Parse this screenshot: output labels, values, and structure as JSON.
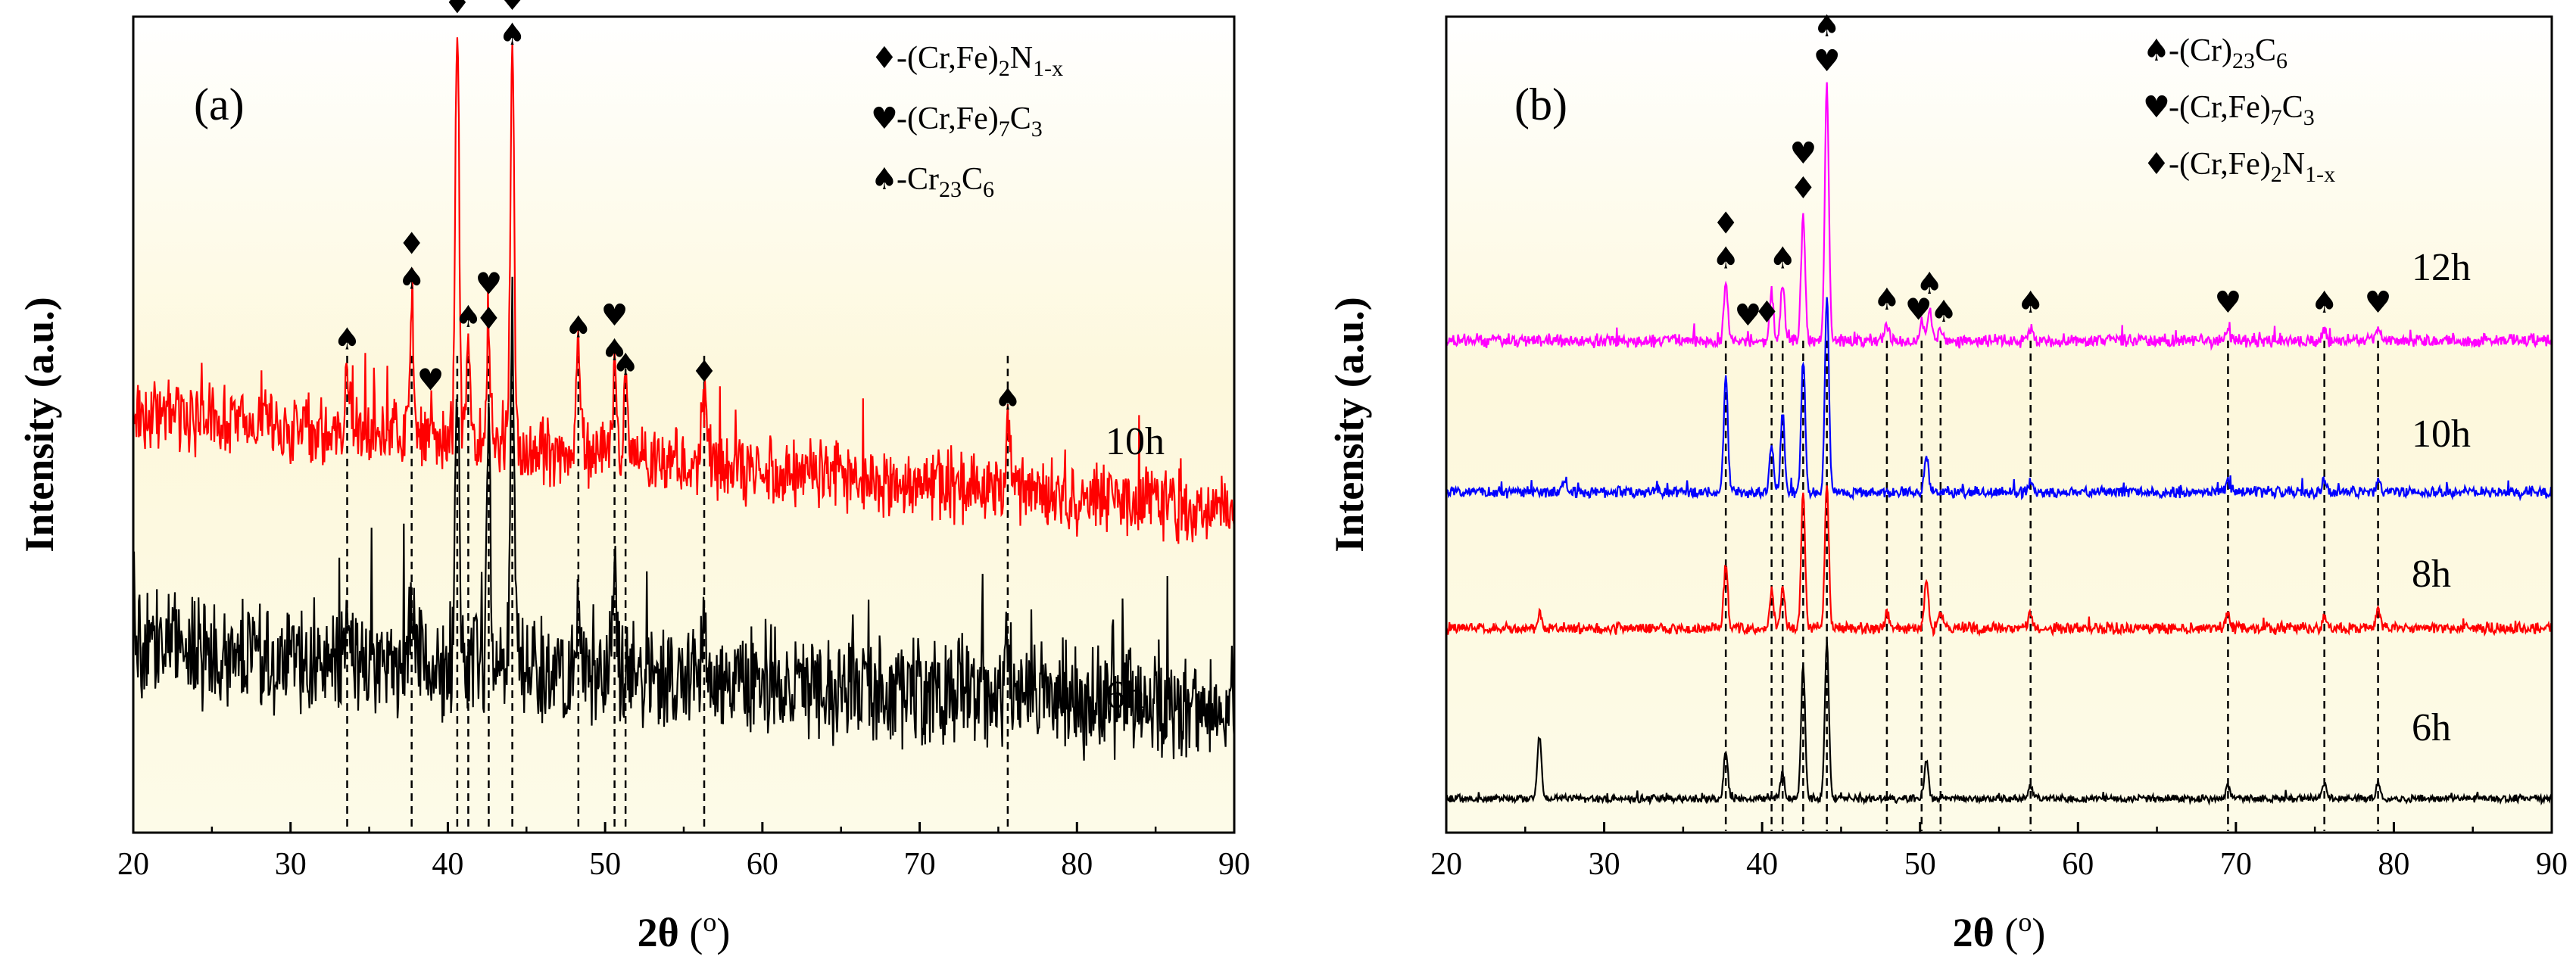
{
  "chart_data": [
    {
      "type": "line",
      "panel_label": "(a)",
      "xlabel_main": "2θ",
      "xlabel_unit": "(",
      "xlabel_deg": "o",
      "xlabel_close": ")",
      "ylabel": "Intensity (a.u.)",
      "xlim": [
        20,
        90
      ],
      "xticks": [
        "20",
        "30",
        "40",
        "50",
        "60",
        "70",
        "80",
        "90"
      ],
      "background": "yellow-gradient",
      "legend": [
        {
          "symbol": "♦",
          "prefix": "-(Cr,Fe)",
          "sub1": "2",
          "mid": "N",
          "sub2": "1-x"
        },
        {
          "symbol": "♥",
          "prefix": "-(Cr,Fe)",
          "sub1": "7",
          "mid": "C",
          "sub2": "3"
        },
        {
          "symbol": "♠",
          "prefix": "-Cr",
          "sub1": "23",
          "mid": "C",
          "sub2": "6"
        }
      ],
      "series": [
        {
          "name": "10h",
          "color": "#ff0000",
          "baseline_start": 0.2,
          "baseline_end": 0.05,
          "noise": 0.09,
          "peaks": [
            [
              33.6,
              0.1
            ],
            [
              37.7,
              0.2
            ],
            [
              38.9,
              0.05
            ],
            [
              40.6,
              0.62
            ],
            [
              41.3,
              0.15
            ],
            [
              42.6,
              0.15
            ],
            [
              44.1,
              0.58
            ],
            [
              48.3,
              0.15
            ],
            [
              50.6,
              0.12
            ],
            [
              51.3,
              0.1
            ],
            [
              56.3,
              0.1
            ],
            [
              75.6,
              0.1
            ]
          ]
        },
        {
          "name": "6h",
          "color": "#000000",
          "baseline_start": 0.12,
          "baseline_end": 0.03,
          "noise": 0.14,
          "peaks": [
            [
              33.6,
              0.05
            ],
            [
              37.7,
              0.1
            ],
            [
              40.6,
              0.45
            ],
            [
              42.6,
              0.35
            ],
            [
              44.1,
              0.5
            ],
            [
              48.3,
              0.08
            ],
            [
              50.6,
              0.15
            ],
            [
              56.3,
              0.08
            ],
            [
              75.6,
              0.1
            ]
          ]
        }
      ],
      "reference_lines": [
        33.6,
        37.7,
        40.6,
        41.3,
        42.6,
        44.1,
        48.3,
        50.6,
        51.3,
        56.3,
        75.6
      ],
      "annotations": [
        {
          "x": 33.6,
          "symbols": "♠"
        },
        {
          "x": 37.7,
          "symbols": "♦♠"
        },
        {
          "x": 38.9,
          "symbols": "♥"
        },
        {
          "x": 40.6,
          "symbols": "♦"
        },
        {
          "x": 41.3,
          "symbols": "♠"
        },
        {
          "x": 42.6,
          "symbols": "♥♦"
        },
        {
          "x": 44.1,
          "symbols": "♥♠"
        },
        {
          "x": 48.3,
          "symbols": "♠"
        },
        {
          "x": 50.6,
          "symbols": "♥♠"
        },
        {
          "x": 51.3,
          "symbols": "♠"
        },
        {
          "x": 56.3,
          "symbols": "♦"
        },
        {
          "x": 75.6,
          "symbols": "♠"
        }
      ]
    },
    {
      "type": "line",
      "panel_label": "(b)",
      "xlabel_main": "2θ",
      "xlabel_unit": "(",
      "xlabel_deg": "o",
      "xlabel_close": ")",
      "ylabel": "Intensity (a.u.)",
      "xlim": [
        20,
        90
      ],
      "xticks": [
        "20",
        "30",
        "40",
        "50",
        "60",
        "70",
        "80",
        "90"
      ],
      "background": "yellow-gradient",
      "legend": [
        {
          "symbol": "♠",
          "prefix": "-(Cr)",
          "sub1": "23",
          "mid": "C",
          "sub2": "6"
        },
        {
          "symbol": "♥",
          "prefix": "-(Cr,Fe)",
          "sub1": "7",
          "mid": "C",
          "sub2": "3"
        },
        {
          "symbol": "♦",
          "prefix": "-(Cr,Fe)",
          "sub1": "2",
          "mid": "N",
          "sub2": "1-x"
        }
      ],
      "series": [
        {
          "name": "12h",
          "color": "#ff00ff",
          "baseline_start": 0.0,
          "baseline_end": 0.0,
          "noise": 0.035,
          "peaks": [
            [
              37.7,
              0.18
            ],
            [
              40.6,
              0.15
            ],
            [
              41.3,
              0.18
            ],
            [
              42.6,
              0.4
            ],
            [
              44.1,
              0.8
            ],
            [
              47.9,
              0.05
            ],
            [
              50.1,
              0.06
            ],
            [
              50.6,
              0.1
            ],
            [
              51.3,
              0.04
            ],
            [
              57.0,
              0.04
            ],
            [
              69.5,
              0.04
            ],
            [
              75.6,
              0.04
            ],
            [
              79.0,
              0.04
            ]
          ]
        },
        {
          "name": "10h",
          "color": "#0000ff",
          "baseline_start": 0.0,
          "baseline_end": 0.0,
          "noise": 0.03,
          "peaks": [
            [
              27.5,
              0.04
            ],
            [
              37.7,
              0.38
            ],
            [
              40.6,
              0.15
            ],
            [
              41.3,
              0.25
            ],
            [
              42.6,
              0.42
            ],
            [
              44.1,
              0.62
            ],
            [
              50.4,
              0.12
            ],
            [
              57.0,
              0.04
            ],
            [
              69.5,
              0.04
            ],
            [
              75.6,
              0.04
            ],
            [
              79.0,
              0.04
            ]
          ]
        },
        {
          "name": "8h",
          "color": "#ff0000",
          "baseline_start": 0.0,
          "baseline_end": 0.0,
          "noise": 0.03,
          "peaks": [
            [
              25.9,
              0.05
            ],
            [
              37.7,
              0.2
            ],
            [
              40.6,
              0.12
            ],
            [
              41.3,
              0.12
            ],
            [
              42.6,
              0.42
            ],
            [
              44.1,
              0.45
            ],
            [
              47.9,
              0.05
            ],
            [
              50.4,
              0.15
            ],
            [
              51.3,
              0.05
            ],
            [
              57.0,
              0.04
            ],
            [
              69.5,
              0.05
            ],
            [
              75.6,
              0.04
            ],
            [
              79.0,
              0.06
            ]
          ]
        },
        {
          "name": "6h",
          "color": "#000000",
          "baseline_start": 0.0,
          "baseline_end": 0.0,
          "noise": 0.02,
          "peaks": [
            [
              25.9,
              0.2
            ],
            [
              37.7,
              0.15
            ],
            [
              41.3,
              0.08
            ],
            [
              42.6,
              0.42
            ],
            [
              44.1,
              0.5
            ],
            [
              50.4,
              0.12
            ],
            [
              57.0,
              0.04
            ],
            [
              69.5,
              0.04
            ],
            [
              75.6,
              0.05
            ],
            [
              79.0,
              0.05
            ]
          ]
        }
      ],
      "reference_lines": [
        37.7,
        40.6,
        41.3,
        42.6,
        44.1,
        47.9,
        50.1,
        51.3,
        57.0,
        69.5,
        75.6,
        79.0
      ],
      "annotations": [
        {
          "x": 37.7,
          "symbols": "♦♠"
        },
        {
          "x": 39.1,
          "symbols": "♥"
        },
        {
          "x": 40.3,
          "symbols": "♦"
        },
        {
          "x": 41.3,
          "symbols": "♠"
        },
        {
          "x": 42.6,
          "symbols": "♥♦"
        },
        {
          "x": 44.1,
          "symbols": "♠♥"
        },
        {
          "x": 47.9,
          "symbols": "♠"
        },
        {
          "x": 49.9,
          "symbols": "♥"
        },
        {
          "x": 50.6,
          "symbols": "♠"
        },
        {
          "x": 51.5,
          "symbols": "♠"
        },
        {
          "x": 57.0,
          "symbols": "♠"
        },
        {
          "x": 69.5,
          "symbols": "♥"
        },
        {
          "x": 75.6,
          "symbols": "♠"
        },
        {
          "x": 79.0,
          "symbols": "♥"
        }
      ]
    }
  ]
}
